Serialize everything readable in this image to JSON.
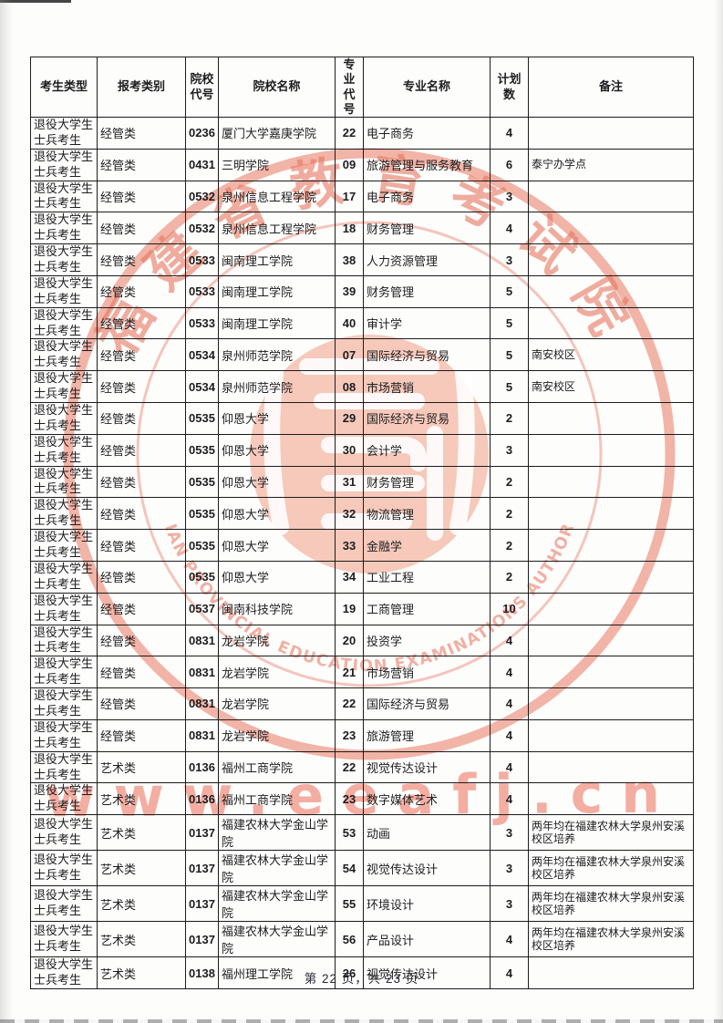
{
  "page": {
    "footer": "第 22 页，共 23 页"
  },
  "watermark": {
    "seal_top_text": "福建省教育考试院",
    "seal_bottom_text": "FUJIAN PROVINCIAL EDUCATION EXAMINATIONS AUTHORITY",
    "url_text": "www.eeafj.cn",
    "seal_color": "#e6715a",
    "url_color": "#ec6c55"
  },
  "table": {
    "headers": [
      "考生类型",
      "报考类别",
      "院校\n代号",
      "院校名称",
      "专业\n代号",
      "专业名称",
      "计划\n数",
      "备注"
    ],
    "rows": [
      {
        "candidate_type": "退役大学生士兵考生",
        "category": "经管类",
        "college_code": "0236",
        "college_name": "厦门大学嘉庚学院",
        "major_code": "22",
        "major_name": "电子商务",
        "plan_count": "4",
        "remark": ""
      },
      {
        "candidate_type": "退役大学生士兵考生",
        "category": "经管类",
        "college_code": "0431",
        "college_name": "三明学院",
        "major_code": "09",
        "major_name": "旅游管理与服务教育",
        "plan_count": "6",
        "remark": "泰宁办学点"
      },
      {
        "candidate_type": "退役大学生士兵考生",
        "category": "经管类",
        "college_code": "0532",
        "college_name": "泉州信息工程学院",
        "major_code": "17",
        "major_name": "电子商务",
        "plan_count": "3",
        "remark": ""
      },
      {
        "candidate_type": "退役大学生士兵考生",
        "category": "经管类",
        "college_code": "0532",
        "college_name": "泉州信息工程学院",
        "major_code": "18",
        "major_name": "财务管理",
        "plan_count": "4",
        "remark": ""
      },
      {
        "candidate_type": "退役大学生士兵考生",
        "category": "经管类",
        "college_code": "0533",
        "college_name": "闽南理工学院",
        "major_code": "38",
        "major_name": "人力资源管理",
        "plan_count": "3",
        "remark": ""
      },
      {
        "candidate_type": "退役大学生士兵考生",
        "category": "经管类",
        "college_code": "0533",
        "college_name": "闽南理工学院",
        "major_code": "39",
        "major_name": "财务管理",
        "plan_count": "5",
        "remark": ""
      },
      {
        "candidate_type": "退役大学生士兵考生",
        "category": "经管类",
        "college_code": "0533",
        "college_name": "闽南理工学院",
        "major_code": "40",
        "major_name": "审计学",
        "plan_count": "5",
        "remark": ""
      },
      {
        "candidate_type": "退役大学生士兵考生",
        "category": "经管类",
        "college_code": "0534",
        "college_name": "泉州师范学院",
        "major_code": "07",
        "major_name": "国际经济与贸易",
        "plan_count": "5",
        "remark": "南安校区"
      },
      {
        "candidate_type": "退役大学生士兵考生",
        "category": "经管类",
        "college_code": "0534",
        "college_name": "泉州师范学院",
        "major_code": "08",
        "major_name": "市场营销",
        "plan_count": "5",
        "remark": "南安校区"
      },
      {
        "candidate_type": "退役大学生士兵考生",
        "category": "经管类",
        "college_code": "0535",
        "college_name": "仰恩大学",
        "major_code": "29",
        "major_name": "国际经济与贸易",
        "plan_count": "2",
        "remark": ""
      },
      {
        "candidate_type": "退役大学生士兵考生",
        "category": "经管类",
        "college_code": "0535",
        "college_name": "仰恩大学",
        "major_code": "30",
        "major_name": "会计学",
        "plan_count": "3",
        "remark": ""
      },
      {
        "candidate_type": "退役大学生士兵考生",
        "category": "经管类",
        "college_code": "0535",
        "college_name": "仰恩大学",
        "major_code": "31",
        "major_name": "财务管理",
        "plan_count": "2",
        "remark": ""
      },
      {
        "candidate_type": "退役大学生士兵考生",
        "category": "经管类",
        "college_code": "0535",
        "college_name": "仰恩大学",
        "major_code": "32",
        "major_name": "物流管理",
        "plan_count": "2",
        "remark": ""
      },
      {
        "candidate_type": "退役大学生士兵考生",
        "category": "经管类",
        "college_code": "0535",
        "college_name": "仰恩大学",
        "major_code": "33",
        "major_name": "金融学",
        "plan_count": "2",
        "remark": ""
      },
      {
        "candidate_type": "退役大学生士兵考生",
        "category": "经管类",
        "college_code": "0535",
        "college_name": "仰恩大学",
        "major_code": "34",
        "major_name": "工业工程",
        "plan_count": "2",
        "remark": ""
      },
      {
        "candidate_type": "退役大学生士兵考生",
        "category": "经管类",
        "college_code": "0537",
        "college_name": "闽南科技学院",
        "major_code": "19",
        "major_name": "工商管理",
        "plan_count": "10",
        "remark": ""
      },
      {
        "candidate_type": "退役大学生士兵考生",
        "category": "经管类",
        "college_code": "0831",
        "college_name": "龙岩学院",
        "major_code": "20",
        "major_name": "投资学",
        "plan_count": "4",
        "remark": ""
      },
      {
        "candidate_type": "退役大学生士兵考生",
        "category": "经管类",
        "college_code": "0831",
        "college_name": "龙岩学院",
        "major_code": "21",
        "major_name": "市场营销",
        "plan_count": "4",
        "remark": ""
      },
      {
        "candidate_type": "退役大学生士兵考生",
        "category": "经管类",
        "college_code": "0831",
        "college_name": "龙岩学院",
        "major_code": "22",
        "major_name": "国际经济与贸易",
        "plan_count": "4",
        "remark": ""
      },
      {
        "candidate_type": "退役大学生士兵考生",
        "category": "经管类",
        "college_code": "0831",
        "college_name": "龙岩学院",
        "major_code": "23",
        "major_name": "旅游管理",
        "plan_count": "4",
        "remark": ""
      },
      {
        "candidate_type": "退役大学生士兵考生",
        "category": "艺术类",
        "college_code": "0136",
        "college_name": "福州工商学院",
        "major_code": "22",
        "major_name": "视觉传达设计",
        "plan_count": "4",
        "remark": ""
      },
      {
        "candidate_type": "退役大学生士兵考生",
        "category": "艺术类",
        "college_code": "0136",
        "college_name": "福州工商学院",
        "major_code": "23",
        "major_name": "数字媒体艺术",
        "plan_count": "4",
        "remark": ""
      },
      {
        "candidate_type": "退役大学生士兵考生",
        "category": "艺术类",
        "college_code": "0137",
        "college_name": "福建农林大学金山学院",
        "major_code": "53",
        "major_name": "动画",
        "plan_count": "3",
        "remark": "两年均在福建农林大学泉州安溪校区培养"
      },
      {
        "candidate_type": "退役大学生士兵考生",
        "category": "艺术类",
        "college_code": "0137",
        "college_name": "福建农林大学金山学院",
        "major_code": "54",
        "major_name": "视觉传达设计",
        "plan_count": "3",
        "remark": "两年均在福建农林大学泉州安溪校区培养"
      },
      {
        "candidate_type": "退役大学生士兵考生",
        "category": "艺术类",
        "college_code": "0137",
        "college_name": "福建农林大学金山学院",
        "major_code": "55",
        "major_name": "环境设计",
        "plan_count": "3",
        "remark": "两年均在福建农林大学泉州安溪校区培养"
      },
      {
        "candidate_type": "退役大学生士兵考生",
        "category": "艺术类",
        "college_code": "0137",
        "college_name": "福建农林大学金山学院",
        "major_code": "56",
        "major_name": "产品设计",
        "plan_count": "4",
        "remark": "两年均在福建农林大学泉州安溪校区培养"
      },
      {
        "candidate_type": "退役大学生士兵考生",
        "category": "艺术类",
        "college_code": "0138",
        "college_name": "福州理工学院",
        "major_code": "26",
        "major_name": "视觉传达设计",
        "plan_count": "4",
        "remark": ""
      }
    ]
  }
}
